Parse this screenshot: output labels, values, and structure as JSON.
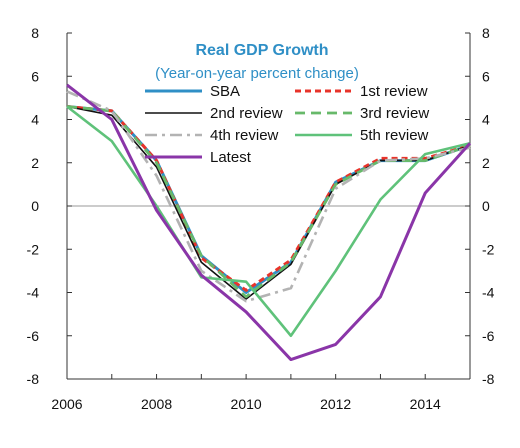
{
  "chart_data": {
    "type": "line",
    "title": "Real GDP Growth",
    "subtitle": "(Year-on-year percent change)",
    "xlabel": "",
    "ylabel": "",
    "x": [
      2006,
      2007,
      2008,
      2009,
      2010,
      2011,
      2012,
      2013,
      2014,
      2015
    ],
    "x_ticks": [
      "2006",
      "2008",
      "2010",
      "2012",
      "2014"
    ],
    "ylim": [
      -8,
      8
    ],
    "y_ticks": [
      "8",
      "6",
      "4",
      "2",
      "0",
      "-2",
      "-4",
      "-6",
      "-8"
    ],
    "grid": false,
    "legend_position": "top-center",
    "series": [
      {
        "name": "SBA",
        "color": "#2f8fc6",
        "dash": "solid",
        "values": [
          4.6,
          4.4,
          2.1,
          -2.3,
          -4.0,
          -2.6,
          1.1,
          2.1,
          2.1,
          2.8
        ]
      },
      {
        "name": "1st review",
        "color": "#e8332a",
        "dash": "short-dash",
        "values": [
          4.6,
          4.4,
          2.1,
          -2.4,
          -3.9,
          -2.5,
          1.1,
          2.2,
          2.2,
          2.8
        ]
      },
      {
        "name": "2nd review",
        "color": "#111111",
        "dash": "solid",
        "values": [
          4.6,
          4.2,
          1.8,
          -2.6,
          -4.3,
          -2.7,
          1.0,
          2.1,
          2.1,
          2.8
        ]
      },
      {
        "name": "3rd review",
        "color": "#67b96a",
        "dash": "dash",
        "values": [
          4.6,
          4.4,
          2.0,
          -2.3,
          -4.2,
          -2.6,
          1.0,
          2.1,
          2.1,
          2.8
        ]
      },
      {
        "name": "4th review",
        "color": "#b3b3b3",
        "dash": "dash-dot",
        "values": [
          5.3,
          4.4,
          1.4,
          -3.0,
          -4.4,
          -3.8,
          0.8,
          2.1,
          2.2,
          2.7
        ]
      },
      {
        "name": "5th review",
        "color": "#5fc27a",
        "dash": "solid",
        "values": [
          4.6,
          3.0,
          0.0,
          -3.3,
          -3.5,
          -6.0,
          -3.0,
          0.3,
          2.4,
          2.9
        ]
      },
      {
        "name": "Latest",
        "color": "#8a35a8",
        "dash": "solid",
        "values": [
          5.6,
          4.0,
          -0.2,
          -3.2,
          -4.9,
          -7.1,
          -6.4,
          -4.2,
          0.6,
          2.9
        ]
      }
    ]
  }
}
